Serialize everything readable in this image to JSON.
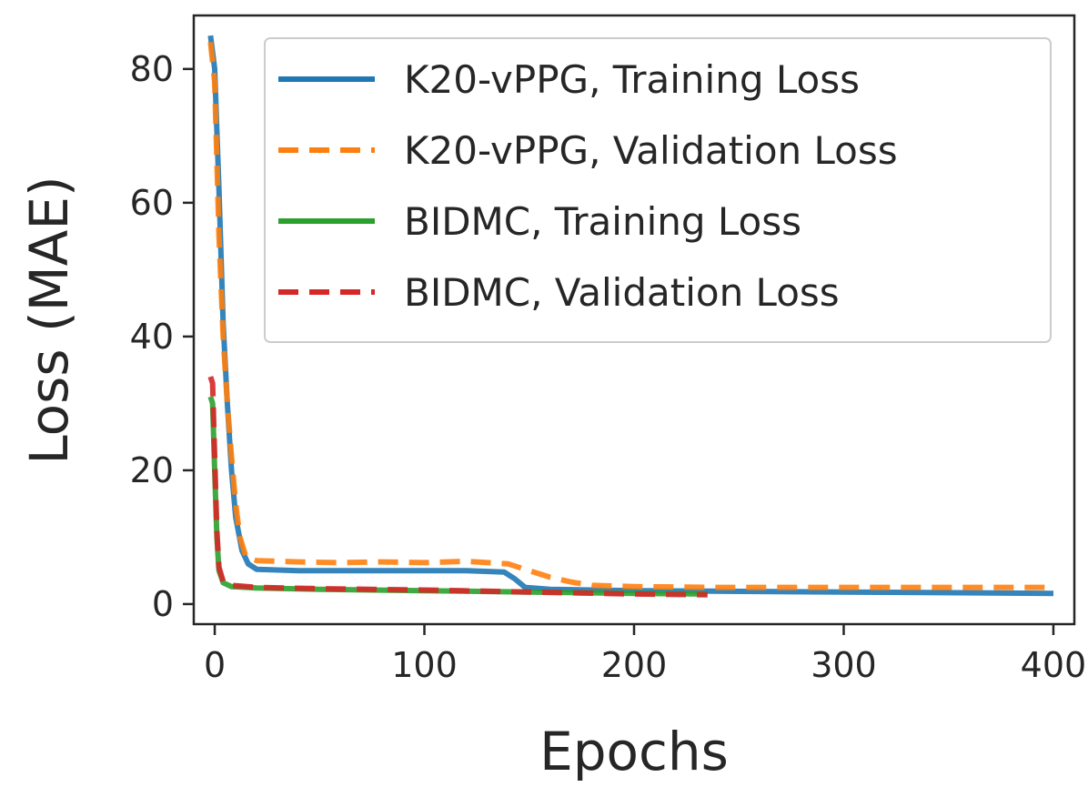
{
  "chart_data": {
    "type": "line",
    "title": "",
    "xlabel": "Epochs",
    "ylabel": "Loss (MAE)",
    "xlim": [
      -10,
      410
    ],
    "ylim": [
      -3,
      88
    ],
    "xticks": [
      0,
      100,
      200,
      300,
      400
    ],
    "yticks": [
      0,
      20,
      40,
      60,
      80
    ],
    "grid": false,
    "legend_position": "top-right",
    "series": [
      {
        "name": "K20-vPPG, Training Loss",
        "color": "#1f77b4",
        "dash": "solid",
        "x": [
          -2,
          0,
          2,
          4,
          6,
          8,
          10,
          13,
          16,
          20,
          40,
          80,
          120,
          138,
          143,
          148,
          160,
          200,
          300,
          400
        ],
        "y": [
          85,
          80,
          62,
          42,
          30,
          20,
          13,
          8,
          6,
          5.2,
          5,
          5,
          5,
          4.8,
          3.8,
          2.5,
          2.2,
          2.0,
          1.8,
          1.6
        ]
      },
      {
        "name": "K20-vPPG, Validation Loss",
        "color": "#ff7f0e",
        "dash": "dashed",
        "x": [
          -2,
          0,
          2,
          4,
          6,
          8,
          10,
          12,
          15,
          20,
          40,
          60,
          80,
          100,
          120,
          140,
          150,
          160,
          170,
          180,
          200,
          240,
          300,
          350,
          400
        ],
        "y": [
          84,
          78,
          55,
          40,
          30,
          22,
          15,
          10,
          7,
          6.5,
          6.3,
          6.2,
          6.3,
          6.2,
          6.4,
          6.0,
          5.0,
          4.0,
          3.3,
          2.8,
          2.6,
          2.5,
          2.5,
          2.5,
          2.5
        ]
      },
      {
        "name": "BIDMC, Training Loss",
        "color": "#2ca02c",
        "dash": "solid",
        "x": [
          -2,
          -1,
          0,
          1,
          2,
          4,
          8,
          20,
          50,
          100,
          150,
          200,
          235
        ],
        "y": [
          31,
          30,
          20,
          10,
          5,
          3.2,
          2.6,
          2.4,
          2.2,
          2.0,
          1.8,
          1.6,
          1.5
        ]
      },
      {
        "name": "BIDMC, Validation Loss",
        "color": "#d62728",
        "dash": "dashed",
        "x": [
          -2,
          -1,
          0,
          1,
          2,
          4,
          8,
          20,
          50,
          100,
          150,
          200,
          235
        ],
        "y": [
          34,
          33,
          22,
          11,
          5.5,
          3.4,
          2.8,
          2.5,
          2.3,
          2.1,
          1.8,
          1.5,
          1.4
        ]
      }
    ]
  }
}
